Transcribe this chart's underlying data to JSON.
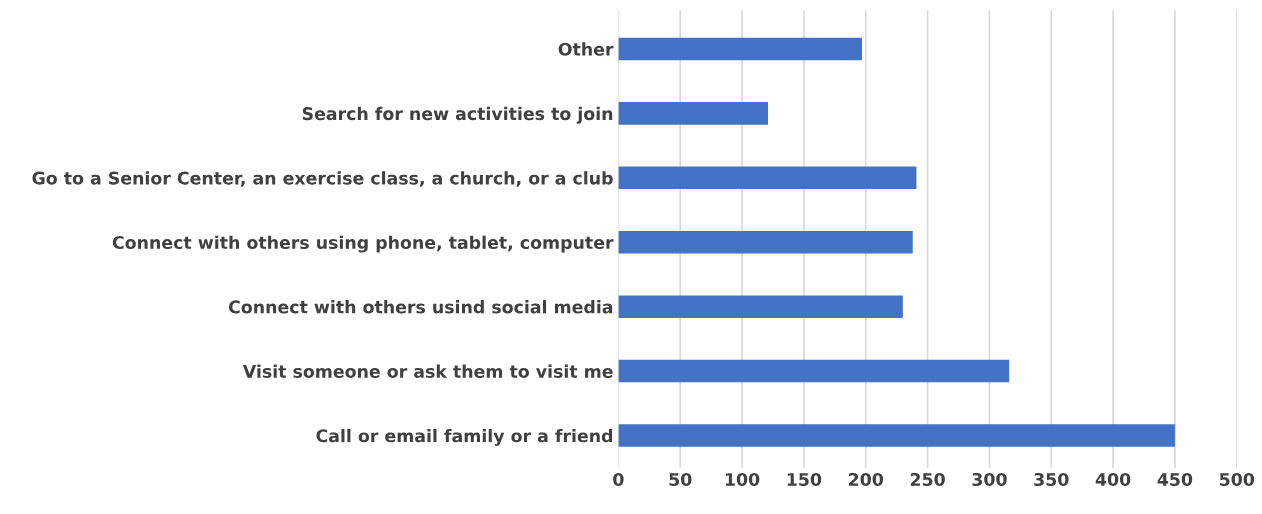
{
  "chart_data": {
    "type": "bar",
    "orientation": "horizontal",
    "categories": [
      "Other",
      "Search for new activities to join",
      "Go to a Senior Center, an exercise class, a church, or a club",
      "Connect with others using phone, tablet, computer",
      "Connect with others usind social media",
      "Visit someone or ask them to visit me",
      "Call or email family or a friend"
    ],
    "values": [
      197,
      121,
      241,
      238,
      230,
      316,
      450
    ],
    "color": "#4472c4",
    "xlim": [
      0,
      500
    ],
    "xticks": [
      0,
      50,
      100,
      150,
      200,
      250,
      300,
      350,
      400,
      450,
      500
    ],
    "grid": "x",
    "legend": false
  }
}
